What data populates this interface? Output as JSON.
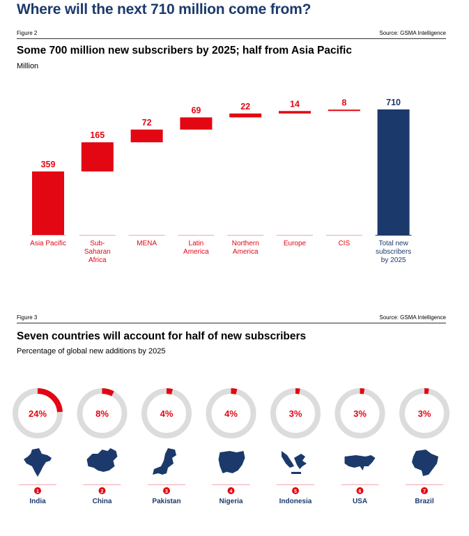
{
  "page": {
    "title": "Where will the next 710 million come from?"
  },
  "figure2": {
    "label": "Figure 2",
    "source": "Source: GSMA Intelligence",
    "title": "Some 700 million new subscribers by 2025; half from Asia Pacific",
    "unit": "Million"
  },
  "figure3": {
    "label": "Figure 3",
    "source": "Source: GSMA Intelligence",
    "title": "Seven countries will account for half of new subscribers",
    "subtitle": "Percentage of global new additions by 2025"
  },
  "colors": {
    "red": "#e30613",
    "navy": "#1b3a6b",
    "ring": "#dcdcdc"
  },
  "chart_data": [
    {
      "type": "bar",
      "subtype": "waterfall",
      "title": "Some 700 million new subscribers by 2025; half from Asia Pacific",
      "ylabel": "Million",
      "ylim": [
        0,
        710
      ],
      "grid": false,
      "categories": [
        {
          "lines": [
            "Asia Pacific"
          ]
        },
        {
          "lines": [
            "Sub-",
            "Saharan",
            "Africa"
          ]
        },
        {
          "lines": [
            "MENA"
          ]
        },
        {
          "lines": [
            "Latin",
            "America"
          ]
        },
        {
          "lines": [
            "Northern",
            "America"
          ]
        },
        {
          "lines": [
            "Europe"
          ]
        },
        {
          "lines": [
            "CIS"
          ]
        },
        {
          "lines": [
            "Total new",
            "subscribers",
            "by 2025"
          ]
        }
      ],
      "values": [
        359,
        165,
        72,
        69,
        22,
        14,
        8,
        710
      ],
      "value_labels": [
        "359",
        "165",
        "72",
        "69",
        "22",
        "14",
        "8",
        "710"
      ],
      "last_is_total": true
    },
    {
      "type": "pie",
      "subtype": "donut-set",
      "title": "Seven countries will account for half of new subscribers",
      "subtitle": "Percentage of global new additions by 2025",
      "items": [
        {
          "rank": "1",
          "country": "India",
          "value": 24,
          "label": "24%",
          "map_icon": "india-map-icon"
        },
        {
          "rank": "2",
          "country": "China",
          "value": 8,
          "label": "8%",
          "map_icon": "china-map-icon"
        },
        {
          "rank": "3",
          "country": "Pakistan",
          "value": 4,
          "label": "4%",
          "map_icon": "pakistan-map-icon"
        },
        {
          "rank": "4",
          "country": "Nigeria",
          "value": 4,
          "label": "4%",
          "map_icon": "nigeria-map-icon"
        },
        {
          "rank": "5",
          "country": "Indonesia",
          "value": 3,
          "label": "3%",
          "map_icon": "indonesia-map-icon"
        },
        {
          "rank": "6",
          "country": "USA",
          "value": 3,
          "label": "3%",
          "map_icon": "usa-map-icon"
        },
        {
          "rank": "7",
          "country": "Brazil",
          "value": 3,
          "label": "3%",
          "map_icon": "brazil-map-icon"
        }
      ]
    }
  ]
}
